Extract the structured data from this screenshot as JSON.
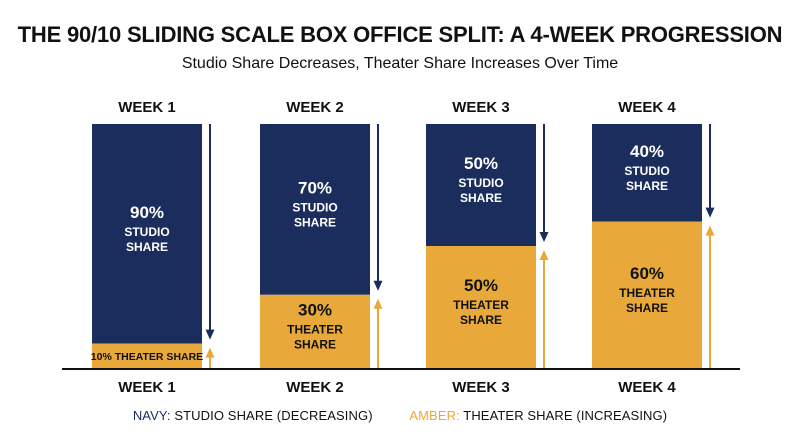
{
  "header": {
    "title": "THE 90/10 SLIDING SCALE BOX OFFICE SPLIT: A 4-WEEK PROGRESSION",
    "subtitle": "Studio Share Decreases, Theater Share Increases Over Time"
  },
  "legend": {
    "navy_key": "NAVY:",
    "navy_text": "STUDIO SHARE (DECREASING)",
    "amber_key": "AMBER:",
    "amber_text": "THEATER SHARE (INCREASING)"
  },
  "colors": {
    "studio": "#1b2d5c",
    "theater": "#e8a93a",
    "text": "#111111",
    "label_on_bar": "#ffffff"
  },
  "chart_data": {
    "type": "bar",
    "stacked": true,
    "categories": [
      "WEEK 1",
      "WEEK 2",
      "WEEK 3",
      "WEEK 4"
    ],
    "top_labels": [
      "WEEK 1",
      "WEEK 2",
      "WEEK 3",
      "WEEK 4"
    ],
    "series": [
      {
        "name": "STUDIO SHARE",
        "values": [
          90,
          70,
          50,
          40
        ],
        "labels": [
          [
            "90%",
            "STUDIO",
            "SHARE"
          ],
          [
            "70%",
            "STUDIO",
            "SHARE"
          ],
          [
            "50%",
            "STUDIO",
            "SHARE"
          ],
          [
            "40%",
            "STUDIO",
            "SHARE"
          ]
        ],
        "trend": "decreasing"
      },
      {
        "name": "THEATER SHARE",
        "values": [
          10,
          30,
          50,
          60
        ],
        "labels": [
          [
            "10% THEATER SHARE"
          ],
          [
            "30%",
            "THEATER",
            "SHARE"
          ],
          [
            "50%",
            "THEATER",
            "SHARE"
          ],
          [
            "60%",
            "THEATER",
            "SHARE"
          ]
        ],
        "trend": "increasing"
      }
    ],
    "ylim": [
      0,
      100
    ],
    "grid": false,
    "legend_position": "bottom"
  }
}
